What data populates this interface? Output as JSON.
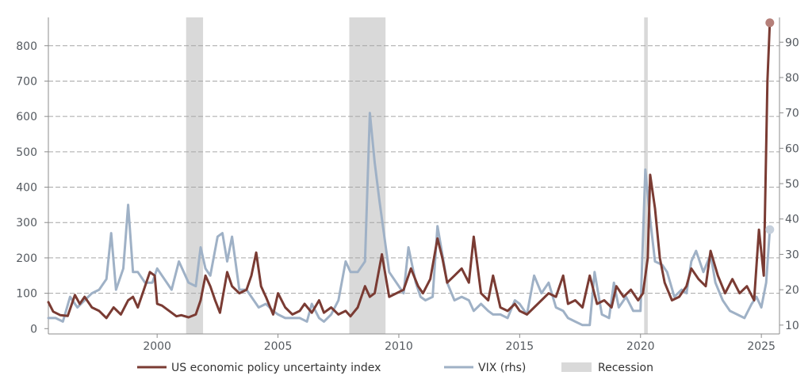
{
  "chart_data": {
    "type": "line",
    "title": "",
    "xlabel": "",
    "ylabel": "",
    "xlim": [
      1995.5,
      2025.75
    ],
    "ylim_left": [
      -15,
      880
    ],
    "ylim_right": [
      7.5,
      97
    ],
    "x_ticks": [
      "2000",
      "2005",
      "2010",
      "2015",
      "2020",
      "2025"
    ],
    "y_ticks_left": [
      "0",
      "100",
      "200",
      "300",
      "400",
      "500",
      "600",
      "700",
      "800"
    ],
    "y_ticks_right": [
      "10",
      "20",
      "30",
      "40",
      "50",
      "60",
      "70",
      "80",
      "90"
    ],
    "grid": "horizontal dashed",
    "legend_position": "bottom",
    "recessions": [
      [
        2001.2,
        2001.9
      ],
      [
        2007.95,
        2009.45
      ],
      [
        2020.15,
        2020.3
      ]
    ],
    "recession_label": "Recession",
    "series": [
      {
        "name": "US economic policy uncertainty index",
        "axis": "left",
        "color": "#7a3b33",
        "points": [
          [
            1995.5,
            75
          ],
          [
            1995.7,
            48
          ],
          [
            1996.0,
            38
          ],
          [
            1996.3,
            36
          ],
          [
            1996.6,
            95
          ],
          [
            1996.8,
            70
          ],
          [
            1997.0,
            90
          ],
          [
            1997.3,
            60
          ],
          [
            1997.6,
            50
          ],
          [
            1997.9,
            30
          ],
          [
            1998.2,
            60
          ],
          [
            1998.5,
            40
          ],
          [
            1998.8,
            80
          ],
          [
            1999.0,
            90
          ],
          [
            1999.2,
            60
          ],
          [
            1999.4,
            100
          ],
          [
            1999.7,
            160
          ],
          [
            1999.9,
            150
          ],
          [
            2000.0,
            70
          ],
          [
            2000.2,
            65
          ],
          [
            2000.5,
            50
          ],
          [
            2000.8,
            35
          ],
          [
            2001.0,
            38
          ],
          [
            2001.3,
            32
          ],
          [
            2001.6,
            40
          ],
          [
            2001.8,
            80
          ],
          [
            2002.0,
            150
          ],
          [
            2002.2,
            120
          ],
          [
            2002.4,
            80
          ],
          [
            2002.6,
            45
          ],
          [
            2002.9,
            160
          ],
          [
            2003.1,
            120
          ],
          [
            2003.4,
            100
          ],
          [
            2003.7,
            110
          ],
          [
            2003.9,
            150
          ],
          [
            2004.1,
            215
          ],
          [
            2004.3,
            120
          ],
          [
            2004.5,
            90
          ],
          [
            2004.8,
            40
          ],
          [
            2005.0,
            100
          ],
          [
            2005.3,
            60
          ],
          [
            2005.6,
            40
          ],
          [
            2005.9,
            50
          ],
          [
            2006.1,
            70
          ],
          [
            2006.4,
            45
          ],
          [
            2006.7,
            80
          ],
          [
            2006.9,
            45
          ],
          [
            2007.2,
            60
          ],
          [
            2007.5,
            40
          ],
          [
            2007.8,
            50
          ],
          [
            2008.0,
            35
          ],
          [
            2008.3,
            60
          ],
          [
            2008.6,
            120
          ],
          [
            2008.8,
            90
          ],
          [
            2009.0,
            100
          ],
          [
            2009.3,
            210
          ],
          [
            2009.6,
            90
          ],
          [
            2009.9,
            100
          ],
          [
            2010.2,
            110
          ],
          [
            2010.5,
            170
          ],
          [
            2010.8,
            120
          ],
          [
            2011.0,
            100
          ],
          [
            2011.3,
            140
          ],
          [
            2011.6,
            255
          ],
          [
            2011.8,
            200
          ],
          [
            2012.0,
            130
          ],
          [
            2012.3,
            150
          ],
          [
            2012.6,
            170
          ],
          [
            2012.9,
            130
          ],
          [
            2013.1,
            260
          ],
          [
            2013.4,
            100
          ],
          [
            2013.7,
            80
          ],
          [
            2013.9,
            150
          ],
          [
            2014.2,
            60
          ],
          [
            2014.5,
            50
          ],
          [
            2014.8,
            70
          ],
          [
            2015.0,
            50
          ],
          [
            2015.3,
            40
          ],
          [
            2015.6,
            60
          ],
          [
            2015.9,
            80
          ],
          [
            2016.2,
            100
          ],
          [
            2016.5,
            90
          ],
          [
            2016.8,
            150
          ],
          [
            2017.0,
            70
          ],
          [
            2017.3,
            80
          ],
          [
            2017.6,
            60
          ],
          [
            2017.9,
            150
          ],
          [
            2018.2,
            70
          ],
          [
            2018.5,
            80
          ],
          [
            2018.8,
            60
          ],
          [
            2019.0,
            120
          ],
          [
            2019.3,
            90
          ],
          [
            2019.6,
            110
          ],
          [
            2019.9,
            80
          ],
          [
            2020.1,
            100
          ],
          [
            2020.3,
            200
          ],
          [
            2020.4,
            435
          ],
          [
            2020.6,
            340
          ],
          [
            2020.8,
            200
          ],
          [
            2021.0,
            130
          ],
          [
            2021.3,
            80
          ],
          [
            2021.6,
            90
          ],
          [
            2021.9,
            120
          ],
          [
            2022.1,
            170
          ],
          [
            2022.4,
            140
          ],
          [
            2022.7,
            120
          ],
          [
            2022.9,
            220
          ],
          [
            2023.2,
            150
          ],
          [
            2023.5,
            100
          ],
          [
            2023.8,
            140
          ],
          [
            2024.1,
            100
          ],
          [
            2024.4,
            120
          ],
          [
            2024.7,
            80
          ],
          [
            2024.9,
            280
          ],
          [
            2025.1,
            150
          ],
          [
            2025.25,
            700
          ],
          [
            2025.35,
            865
          ]
        ]
      },
      {
        "name": "VIX (rhs)",
        "axis": "right",
        "color": "#9fb1c6",
        "points": [
          [
            1995.5,
            12
          ],
          [
            1995.8,
            12
          ],
          [
            1996.1,
            11
          ],
          [
            1996.4,
            18
          ],
          [
            1996.7,
            15
          ],
          [
            1997.0,
            17
          ],
          [
            1997.3,
            19
          ],
          [
            1997.6,
            20
          ],
          [
            1997.9,
            23
          ],
          [
            1998.1,
            36
          ],
          [
            1998.3,
            20
          ],
          [
            1998.6,
            26
          ],
          [
            1998.8,
            44
          ],
          [
            1999.0,
            25
          ],
          [
            1999.2,
            25
          ],
          [
            1999.5,
            22
          ],
          [
            1999.8,
            22
          ],
          [
            2000.0,
            26
          ],
          [
            2000.3,
            23
          ],
          [
            2000.6,
            20
          ],
          [
            2000.9,
            28
          ],
          [
            2001.1,
            25
          ],
          [
            2001.3,
            22
          ],
          [
            2001.6,
            21
          ],
          [
            2001.8,
            32
          ],
          [
            2002.0,
            26
          ],
          [
            2002.2,
            24
          ],
          [
            2002.5,
            35
          ],
          [
            2002.7,
            36
          ],
          [
            2002.9,
            28
          ],
          [
            2003.1,
            35
          ],
          [
            2003.4,
            20
          ],
          [
            2003.7,
            20
          ],
          [
            2003.9,
            18
          ],
          [
            2004.2,
            15
          ],
          [
            2004.5,
            16
          ],
          [
            2004.8,
            14
          ],
          [
            2005.0,
            13
          ],
          [
            2005.3,
            12
          ],
          [
            2005.6,
            12
          ],
          [
            2005.9,
            12
          ],
          [
            2006.2,
            11
          ],
          [
            2006.4,
            16
          ],
          [
            2006.7,
            12
          ],
          [
            2006.9,
            11
          ],
          [
            2007.2,
            13
          ],
          [
            2007.5,
            17
          ],
          [
            2007.8,
            28
          ],
          [
            2008.0,
            25
          ],
          [
            2008.3,
            25
          ],
          [
            2008.6,
            28
          ],
          [
            2008.8,
            70
          ],
          [
            2009.0,
            56
          ],
          [
            2009.2,
            45
          ],
          [
            2009.4,
            35
          ],
          [
            2009.6,
            25
          ],
          [
            2009.9,
            22
          ],
          [
            2010.2,
            19
          ],
          [
            2010.4,
            32
          ],
          [
            2010.7,
            22
          ],
          [
            2010.9,
            18
          ],
          [
            2011.1,
            17
          ],
          [
            2011.4,
            18
          ],
          [
            2011.6,
            38
          ],
          [
            2011.8,
            30
          ],
          [
            2012.0,
            22
          ],
          [
            2012.3,
            17
          ],
          [
            2012.6,
            18
          ],
          [
            2012.9,
            17
          ],
          [
            2013.1,
            14
          ],
          [
            2013.4,
            16
          ],
          [
            2013.7,
            14
          ],
          [
            2013.9,
            13
          ],
          [
            2014.2,
            13
          ],
          [
            2014.5,
            12
          ],
          [
            2014.8,
            17
          ],
          [
            2015.0,
            16
          ],
          [
            2015.3,
            13
          ],
          [
            2015.6,
            24
          ],
          [
            2015.9,
            19
          ],
          [
            2016.2,
            22
          ],
          [
            2016.5,
            15
          ],
          [
            2016.8,
            14
          ],
          [
            2017.0,
            12
          ],
          [
            2017.3,
            11
          ],
          [
            2017.6,
            10
          ],
          [
            2017.9,
            10
          ],
          [
            2018.1,
            25
          ],
          [
            2018.4,
            13
          ],
          [
            2018.7,
            12
          ],
          [
            2018.9,
            22
          ],
          [
            2019.1,
            15
          ],
          [
            2019.4,
            18
          ],
          [
            2019.7,
            14
          ],
          [
            2020.0,
            14
          ],
          [
            2020.2,
            54
          ],
          [
            2020.4,
            40
          ],
          [
            2020.6,
            28
          ],
          [
            2020.9,
            27
          ],
          [
            2021.1,
            25
          ],
          [
            2021.4,
            18
          ],
          [
            2021.7,
            20
          ],
          [
            2021.9,
            19
          ],
          [
            2022.1,
            28
          ],
          [
            2022.3,
            31
          ],
          [
            2022.6,
            25
          ],
          [
            2022.9,
            30
          ],
          [
            2023.1,
            22
          ],
          [
            2023.4,
            17
          ],
          [
            2023.7,
            14
          ],
          [
            2024.0,
            13
          ],
          [
            2024.3,
            12
          ],
          [
            2024.6,
            16
          ],
          [
            2024.8,
            18
          ],
          [
            2025.0,
            15
          ],
          [
            2025.2,
            22
          ],
          [
            2025.35,
            37
          ]
        ]
      }
    ]
  },
  "legend": {
    "items": [
      {
        "label": "US economic policy uncertainty index",
        "color": "#7a3b33",
        "kind": "line"
      },
      {
        "label": "VIX (rhs)",
        "color": "#9fb1c6",
        "kind": "line"
      },
      {
        "label": "Recession",
        "color": "#d9d9d9",
        "kind": "box"
      }
    ]
  },
  "colors": {
    "grid": "#a6a6a6",
    "axis": "#8c8c8c",
    "recession": "#d9d9d9",
    "epu_endpoint": "#b57f79",
    "vix_endpoint": "#c6d0dc"
  }
}
